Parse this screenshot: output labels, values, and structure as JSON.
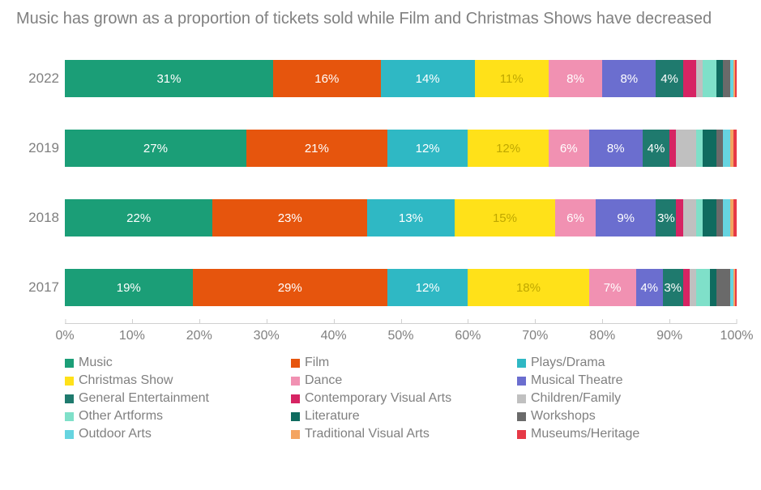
{
  "chart": {
    "type": "stacked-bar-horizontal",
    "title": "Music has grown as a proportion of tickets sold while Film and Christmas Shows have decreased",
    "title_color": "#808080",
    "title_fontsize": 20,
    "background_color": "#ffffff",
    "axis_label_color": "#808080",
    "axis_label_fontsize": 17,
    "grid_color": "#d0d0d0",
    "bar_label_color": "#ffffff",
    "bar_label_fontsize": 15,
    "legend_fontsize": 16,
    "xaxis": {
      "min": 0,
      "max": 100,
      "tick_step": 10,
      "ticks": [
        "0%",
        "10%",
        "20%",
        "30%",
        "40%",
        "50%",
        "60%",
        "70%",
        "80%",
        "90%",
        "100%"
      ]
    },
    "years": [
      "2022",
      "2019",
      "2018",
      "2017"
    ],
    "series": [
      {
        "name": "Music",
        "color": "#1b9e77"
      },
      {
        "name": "Film",
        "color": "#e6550d"
      },
      {
        "name": "Plays/Drama",
        "color": "#2fb8c4"
      },
      {
        "name": "Christmas Show",
        "color": "#ffe119"
      },
      {
        "name": "Dance",
        "color": "#f191b2"
      },
      {
        "name": "Musical Theatre",
        "color": "#6b6ecf"
      },
      {
        "name": "General Entertainment",
        "color": "#1f7a6e"
      },
      {
        "name": "Contemporary Visual Arts",
        "color": "#d62463"
      },
      {
        "name": "Children/Family",
        "color": "#c0c0c0"
      },
      {
        "name": "Other Artforms",
        "color": "#7fe0c9"
      },
      {
        "name": "Literature",
        "color": "#0f6b5f"
      },
      {
        "name": "Workshops",
        "color": "#6a6a6a"
      },
      {
        "name": "Outdoor Arts",
        "color": "#66d4e0"
      },
      {
        "name": "Traditional Visual Arts",
        "color": "#f4a460"
      },
      {
        "name": "Museums/Heritage",
        "color": "#e63946"
      }
    ],
    "rows": {
      "2022": {
        "values": [
          31,
          16,
          14,
          11,
          8,
          8,
          4,
          2,
          1,
          2,
          1,
          1,
          0.5,
          0.3,
          0.2
        ],
        "labels": [
          "31%",
          "16%",
          "14%",
          "11%",
          "8%",
          "8%",
          "4%",
          "",
          "",
          "",
          "",
          "",
          "",
          "",
          ""
        ]
      },
      "2019": {
        "values": [
          27,
          21,
          12,
          12,
          6,
          8,
          4,
          1,
          3,
          1,
          2,
          1,
          1,
          0.5,
          0.5
        ],
        "labels": [
          "27%",
          "21%",
          "12%",
          "12%",
          "6%",
          "8%",
          "4%",
          "",
          "",
          "",
          "",
          "",
          "",
          "",
          ""
        ]
      },
      "2018": {
        "values": [
          22,
          23,
          13,
          15,
          6,
          9,
          3,
          1,
          2,
          1,
          2,
          1,
          1,
          0.5,
          0.5
        ],
        "labels": [
          "22%",
          "23%",
          "13%",
          "15%",
          "6%",
          "9%",
          "3%",
          "",
          "",
          "",
          "",
          "",
          "",
          "",
          ""
        ]
      },
      "2017": {
        "values": [
          19,
          29,
          12,
          18,
          7,
          4,
          3,
          1,
          1,
          2,
          1,
          2,
          0.5,
          0.3,
          0.2
        ],
        "labels": [
          "19%",
          "29%",
          "12%",
          "18%",
          "7%",
          "4%",
          "3%",
          "",
          "",
          "",
          "",
          "",
          "",
          "",
          ""
        ]
      }
    }
  }
}
